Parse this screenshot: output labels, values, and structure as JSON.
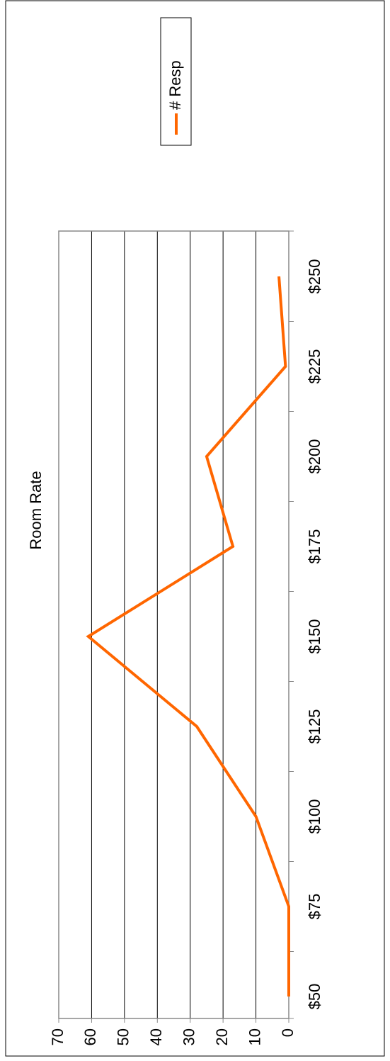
{
  "chart_data": {
    "type": "line",
    "title": "Room Rate",
    "categories": [
      "$50",
      "$75",
      "$100",
      "$125",
      "$150",
      "$175",
      "$200",
      "$225",
      "$250"
    ],
    "series": [
      {
        "name": "# Resp",
        "color": "#ff6600",
        "values": [
          0,
          0,
          10,
          28,
          61,
          17,
          25,
          1,
          3
        ]
      }
    ],
    "ylim": [
      0,
      70
    ],
    "yticks": [
      0,
      10,
      20,
      30,
      40,
      50,
      60,
      70
    ],
    "grid": true,
    "legend": "right"
  }
}
